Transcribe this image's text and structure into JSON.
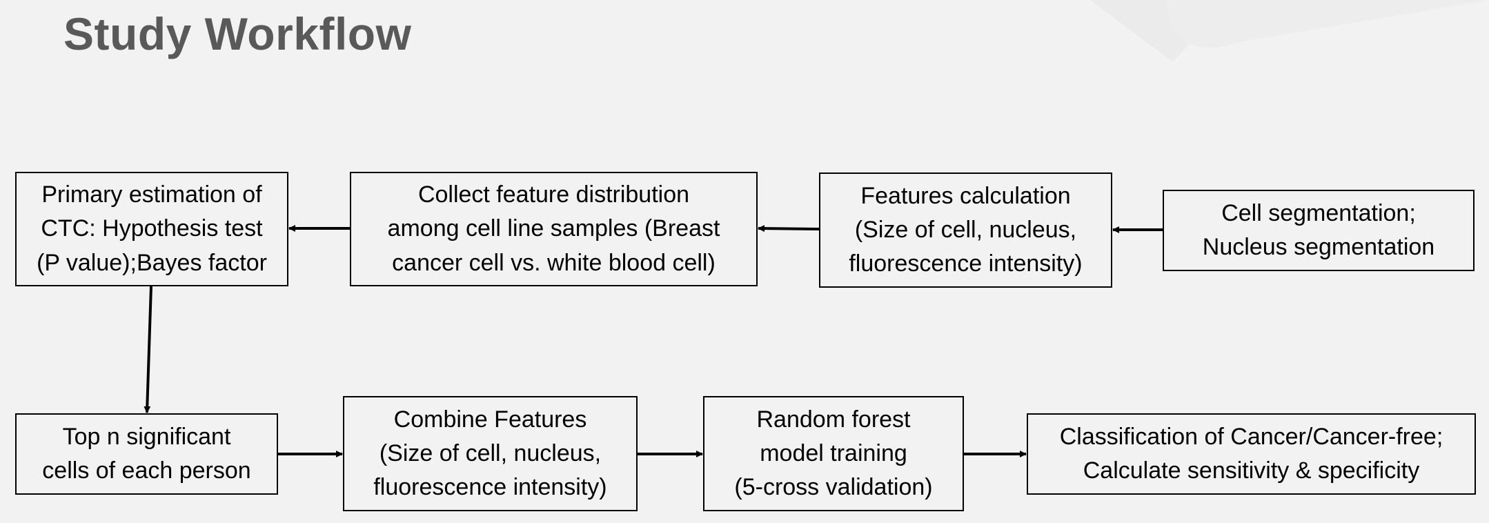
{
  "title": "Study Workflow",
  "nodes": {
    "primary_estimation": "Primary estimation of\nCTC: Hypothesis test\n(P value);Bayes factor",
    "collect_distribution": "Collect feature distribution\namong cell line samples (Breast\ncancer cell vs. white blood cell)",
    "features_calculation": "Features calculation\n(Size of cell, nucleus,\nfluorescence intensity)",
    "cell_segmentation": "Cell segmentation;\nNucleus segmentation",
    "top_n_cells": "Top n significant\ncells of each person",
    "combine_features": "Combine Features\n(Size of cell, nucleus,\nfluorescence intensity)",
    "random_forest": "Random forest\nmodel training\n(5-cross validation)",
    "classification": "Classification of Cancer/Cancer-free;\nCalculate sensitivity & specificity"
  },
  "colors": {
    "background": "#f2f2f2",
    "title": "#595959",
    "stroke": "#000000"
  }
}
